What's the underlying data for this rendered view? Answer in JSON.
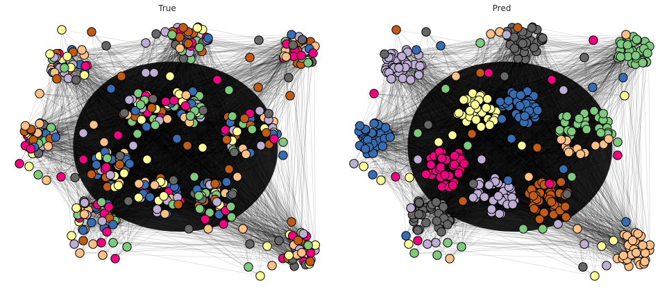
{
  "panels": [
    {
      "title": "True"
    },
    {
      "title": "Pred"
    }
  ],
  "node_palette": {
    "green": "#7fc97f",
    "purple": "#beaed4",
    "orange": "#fdc086",
    "yellow": "#ffff99",
    "blue": "#386cb0",
    "pink": "#f0027f",
    "brown": "#bf5b17",
    "gray": "#666666"
  },
  "node_outline_color": "#000000",
  "edge_color": "#000000"
}
